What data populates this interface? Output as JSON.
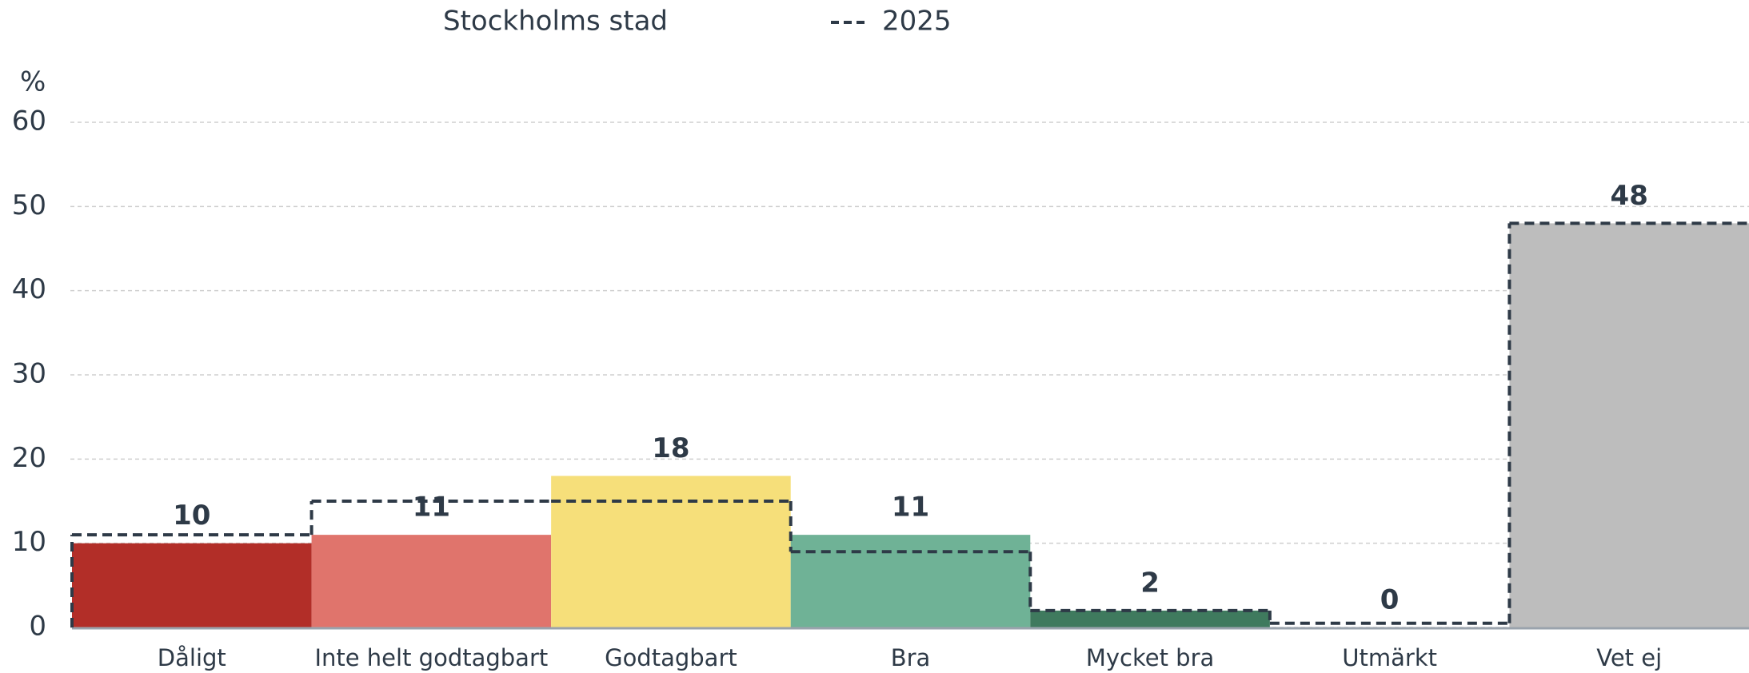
{
  "chart_data": {
    "type": "bar",
    "y_label": "%",
    "categories": [
      "Dåligt",
      "Inte helt godtagbart",
      "Godtagbart",
      "Bra",
      "Mycket bra",
      "Utmärkt",
      "Vet ej"
    ],
    "series": [
      {
        "name": "Stockholms stad",
        "colors": [
          "#b22e28",
          "#e0746c",
          "#f6df7a",
          "#6fb296",
          "#3f7a5e",
          "#3f7a5e",
          "#bdbdbd"
        ],
        "values": [
          10,
          11,
          18,
          11,
          2,
          0,
          48
        ]
      },
      {
        "name": "2025",
        "color": "#2e3a47",
        "line_style": "dashed",
        "values": [
          11,
          15,
          15,
          9,
          2,
          0.5,
          48
        ]
      }
    ],
    "ylim": [
      0,
      60
    ],
    "yticks": [
      0,
      10,
      20,
      30,
      40,
      50,
      60
    ],
    "grid": true
  }
}
